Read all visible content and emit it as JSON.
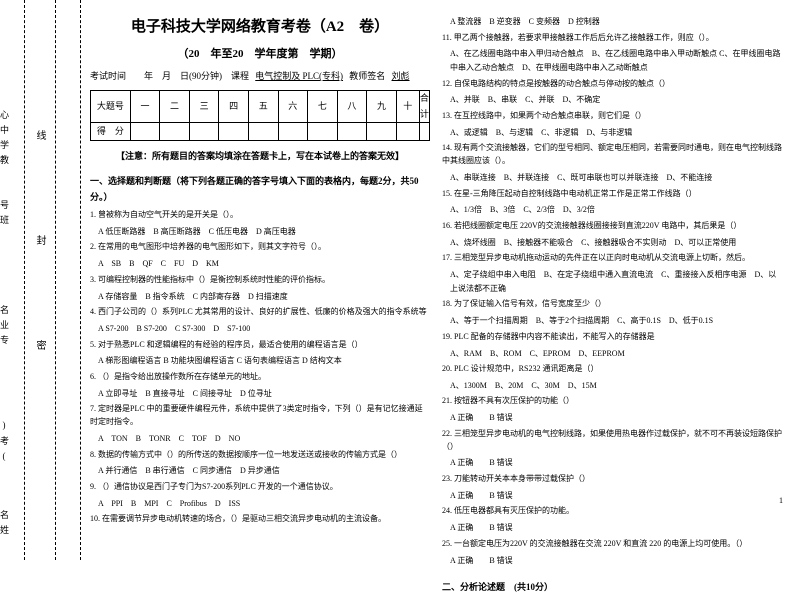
{
  "sidebar": {
    "vertical_labels": [
      "心中学教",
      "【",
      "线",
      "】",
      "号学"
    ],
    "binding_labels": [
      "线",
      "封",
      "密"
    ],
    "name_col": [
      "号班",
      "名业专",
      ")考(",
      "名姓"
    ]
  },
  "header": {
    "title": "电子科技大学网络教育考卷（A2　卷）",
    "subtitle": "（20　年至20　学年度第　学期）",
    "examinfo_prefix": "考试时间　　年　月　日(90分钟)　课程",
    "course": "电气控制及 PLC(专科)",
    "teacher_label": "教师签名",
    "teacher": "刘彪"
  },
  "score_table": {
    "row1": [
      "大题号",
      "一",
      "二",
      "三",
      "四",
      "五",
      "六",
      "七",
      "八",
      "九",
      "十",
      "合计"
    ],
    "row2_label": "得　分"
  },
  "notice": "【注意：所有题目的答案均填涂在答题卡上，写在本试卷上的答案无效】",
  "section1": "一、选择题和判断题（将下列各题正确的答字号填入下面的表格内，每题2分，共50分。）",
  "questions_left": [
    {
      "n": "1",
      "text": "曾被称为自动空气开关的是开关是（）。",
      "opts": "A 低压断路器　B 高压断路器　C 低压电器　D 高压电器"
    },
    {
      "n": "2",
      "text": "在常用的电气图形中培养器的电气图形如下，则其文字符号（）。",
      "opts": "A　SB　B　QF　C　FU　D　KM"
    },
    {
      "n": "3",
      "text": "可编程控制器的性能指标中（）是衡控制系统时性能的评价指标。",
      "opts": "A 存储容量　B 指令系统　C 内部寄存器　D 扫描速度"
    },
    {
      "n": "4",
      "text": "西门子公司的（）系列PLC 尤其常用的设计、良好的扩展性、低廉的价格及强大的指令系统等",
      "opts": "A S7-200　B S7-200　C S7-300　D　S7-100"
    },
    {
      "n": "5",
      "text": "对于熟悉PLC 和逻辑编程的有经验的程序员，最适合使用的编程语言是（）",
      "opts": "A 梯形图编程语言 B 功能块图编程语言 C 语句表编程语言 D 结构文本"
    },
    {
      "n": "6",
      "text": "（）是指令给出放操作数所在存储单元的地址。",
      "opts": "A 立即寻址　B 直接寻址　C 间接寻址　D 位寻址"
    },
    {
      "n": "7",
      "text": "定时器是PLC 中的重要硬件编程元件，系统中提供了3类定时指令，下列（）是有记忆接通延时定时指令。",
      "opts": "A　TON　B　TONR　C　TOF　D　NO"
    },
    {
      "n": "8",
      "text": "数据的传输方式中（）的所传送的数据按顺序一位一地发送送或接收的传输方式是（）",
      "opts": "A 并行通信　B 串行通信　C 同步通信　D 异步通信"
    },
    {
      "n": "9",
      "text": "（）通信协议是西门子专门为S7-200系列PLC 开发的一个通信协议。",
      "opts": "A　PPI　B　MPI　C　Profibus　D　ISS"
    },
    {
      "n": "10",
      "text": "在需要调节异步电动机转速的场合，（）是驱动三相交流异步电动机的主流设备。"
    }
  ],
  "questions_right": [
    {
      "opts": "A 整流器　B 逆变器　C 变频器　D 控制器"
    },
    {
      "n": "11",
      "text": "甲乙两个接触器，若要求甲接触器工作后后允许乙接触器工作，则应（）。",
      "opts": "A、在乙线圈电路中串入甲归动合触点　B、在乙线圈电路中串入甲动断触点\nC、在甲线圈电路中串入乙动合触点　D、在甲线圈电路中串入乙动断触点"
    },
    {
      "n": "12",
      "text": "自保电路结构的特点是按触器的动合触点与停动按的触点（）",
      "opts": "A、并联　B、串联　C、并联　D、不确定"
    },
    {
      "n": "13",
      "text": "在互控线路中，如果两个动合触点串联，则它们是（）",
      "opts": "A、或逻辑　B、与逻辑　C、非逻辑　D、与非逻辑"
    },
    {
      "n": "14",
      "text": "现有两个交流接触器，它们的型号相同、额定电压相同，若需要同时通电，则在电气控制线路中其线圈应该（）。",
      "opts": "A、串联连接　B、并联连接　C、既可串联也可以并联连接　D、不能连接"
    },
    {
      "n": "15",
      "text": "在星-三角降压起动自控制线路中电动机正常工作是正常工作线路（）",
      "opts": "A、1/3倍　B、3倍　C、2/3倍　D、3/2倍"
    },
    {
      "n": "16",
      "text": "若把线圈额定电压 220V的交流接触器线圈接接到直流220V 电路中，其后果是（）",
      "opts": "A、烧坏线圈　B、接触器不能吸合　C、接触器吸合不实则动　D、可以正常使用"
    },
    {
      "n": "17",
      "text": "三相笼型异步电动机拖动运动的先件正在以正向时电动机从交流电源上切断，然后。",
      "opts": "A、定子绕组中串入电阻　B、在定子绕组中通入直流电流　C、重接接入反相序电源　D、以上说法都不正确"
    },
    {
      "n": "18",
      "text": "为了保证输入信号有效，信号宽度至少（）",
      "opts": "A、等于一个扫描周期　B、等于2个扫描周期　C、高于0.1S　D、低于0.1S"
    },
    {
      "n": "19",
      "text": "PLC 配备的存储器中内容不能读出，不能写入的存储器是",
      "opts": "A、RAM　B、ROM　C、EPROM　D、EEPROM"
    },
    {
      "n": "20",
      "text": "PLC 设计规范中，RS232 通讯距离是（）",
      "opts": "A、1300M　B、20M　C、30M　D、15M"
    },
    {
      "n": "21",
      "text": "按钮器不具有次压保护的功能（）",
      "opts": "A 正确　　B 错误"
    },
    {
      "n": "22",
      "text": "三相笼型异步电动机的电气控制线路，如果使用热电器作过载保护，就不可不再装设短路保护（）",
      "opts": "A 正确　　B 错误"
    },
    {
      "n": "23",
      "text": "刀能转动开关本本身带带过载保护（）",
      "opts": "A 正确　　B 错误"
    },
    {
      "n": "24",
      "text": "低压电器都具有灭压保护的功能。",
      "opts": "A 正确　　B 错误"
    },
    {
      "n": "25",
      "text": "一台额定电压为220V 的交流接触器在交流 220V 和直流 220 的电源上均可使用。（）",
      "opts": "A 正确　　B 错误"
    }
  ],
  "section2": "二、分析论述题　(共10分）",
  "pagenum": "1"
}
